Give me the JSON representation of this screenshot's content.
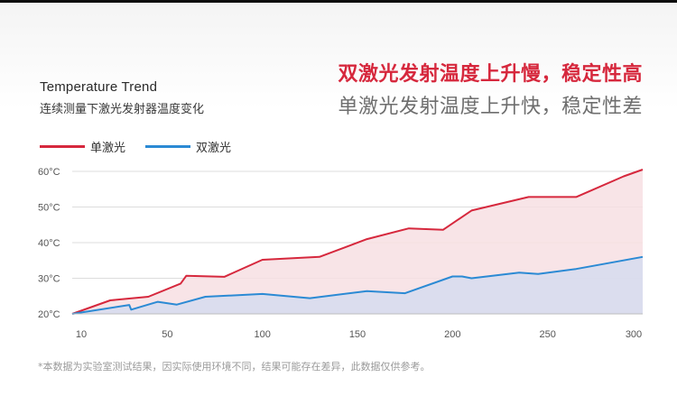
{
  "title_en": "Temperature Trend",
  "title_cn": "连续测量下激光发射器温度变化",
  "headline_red": "双激光发射温度上升慢，稳定性高",
  "headline_gray": "单激光发射温度上升快，稳定性差",
  "footnote": "*本数据为实验室测试结果，因实际使用环境不同，结果可能存在差异，此数据仅供参考。",
  "colors": {
    "single": "#d6283d",
    "double": "#2b8ad4",
    "single_fill": "#f7dfe3",
    "double_fill": "#d7dcee"
  },
  "chart_data": {
    "type": "area",
    "xlabel": "",
    "ylabel": "",
    "xlim": [
      0,
      300
    ],
    "ylim": [
      20,
      60
    ],
    "x_ticks": [
      "10",
      "50",
      "100",
      "150",
      "200",
      "250",
      "300"
    ],
    "y_ticks": [
      "20°C",
      "30°C",
      "40°C",
      "50°C",
      "60°C"
    ],
    "legend_position": "top-left",
    "grid": true,
    "series": [
      {
        "name": "单激光",
        "x": [
          0,
          20,
          40,
          57,
          60,
          80,
          100,
          130,
          155,
          177,
          195,
          210,
          240,
          265,
          290,
          300
        ],
        "y": [
          20.0,
          23.8,
          24.8,
          28.5,
          30.7,
          30.4,
          35.2,
          36.0,
          41.0,
          44.0,
          43.6,
          49.0,
          52.8,
          52.8,
          58.6,
          60.5
        ]
      },
      {
        "name": "双激光",
        "x": [
          0,
          30,
          31,
          45,
          55,
          70,
          100,
          125,
          155,
          175,
          200,
          205,
          210,
          235,
          245,
          265,
          300
        ],
        "y": [
          20.0,
          22.5,
          21.2,
          23.4,
          22.6,
          24.8,
          25.6,
          24.4,
          26.4,
          25.8,
          30.5,
          30.5,
          30.0,
          31.6,
          31.2,
          32.6,
          36.0
        ]
      }
    ]
  }
}
